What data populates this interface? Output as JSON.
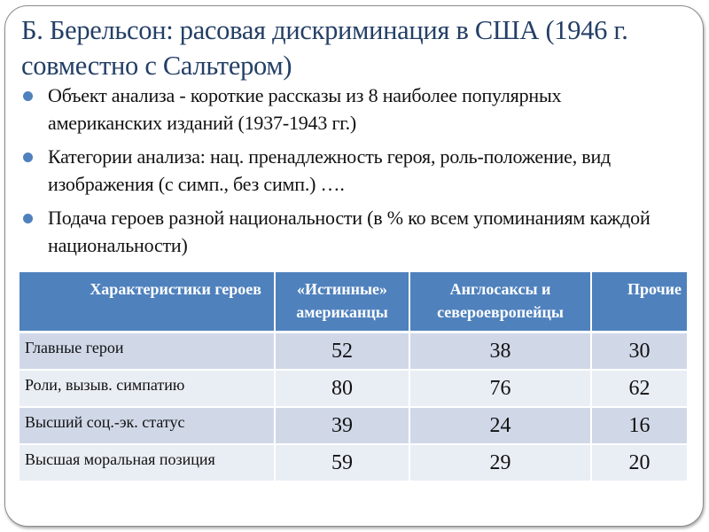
{
  "slide": {
    "title": "Б. Берельсон: расовая дискриминация в США (1946 г. совместно с Сальтером)",
    "bullets": [
      "Объект анализа - короткие рассказы из 8 наиболее популярных американских изданий (1937-1943 гг.)",
      "Категории анализа: нац. пренадлежность героя, роль-положение, вид изображения (с симп., без симп.) ….",
      "Подача героев разной национальности (в % ко всем упоминаниям каждой национальности)"
    ],
    "bullet_color": "#4f81bd",
    "header_color": "#4f81bd"
  },
  "table": {
    "headers": [
      "Характеристики героев",
      "«Истинные» американцы",
      "Англосаксы и североевропейцы",
      "Прочие"
    ],
    "rows": [
      {
        "label": "Главные герои",
        "values": [
          "52",
          "38",
          "30"
        ]
      },
      {
        "label": "Роли, вызыв. симпатию",
        "values": [
          "80",
          "76",
          "62"
        ]
      },
      {
        "label": "Высший соц.-эк. статус",
        "values": [
          "39",
          "24",
          "16"
        ]
      },
      {
        "label": "Высшая моральная позиция",
        "values": [
          "59",
          "29",
          "20"
        ]
      }
    ]
  }
}
